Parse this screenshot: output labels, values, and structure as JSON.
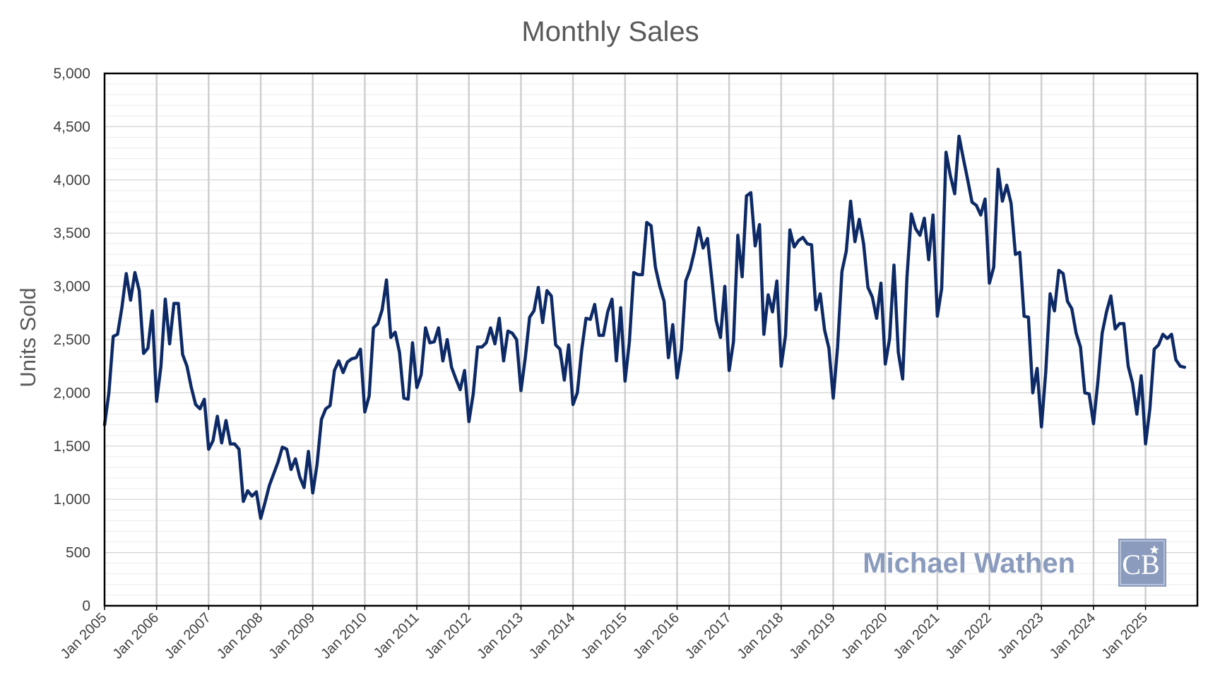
{
  "chart_data": {
    "type": "line",
    "title": "Monthly Sales",
    "ylabel": "Units Sold",
    "xlabel": "",
    "ylim": [
      0,
      5000
    ],
    "yticks": [
      0,
      500,
      1000,
      1500,
      2000,
      2500,
      3000,
      3500,
      4000,
      4500,
      5000
    ],
    "ytick_labels": [
      "0",
      "500",
      "1,000",
      "1,500",
      "2,000",
      "2,500",
      "3,000",
      "3,500",
      "4,000",
      "4,500",
      "5,000"
    ],
    "xtick_labels": [
      "Jan 2005",
      "Jan 2006",
      "Jan 2007",
      "Jan 2008",
      "Jan 2009",
      "Jan 2010",
      "Jan 2011",
      "Jan 2012",
      "Jan 2013",
      "Jan 2014",
      "Jan 2015",
      "Jan 2016",
      "Jan 2017",
      "Jan 2018",
      "Jan 2019",
      "Jan 2020",
      "Jan 2021",
      "Jan 2022",
      "Jan 2023",
      "Jan 2024",
      "Jan 2025"
    ],
    "x_start": "Jan 2005",
    "x_end": "Oct 2025",
    "x_frequency": "monthly",
    "grid": true,
    "legend": "none",
    "line_color": "#0d2a66",
    "series": [
      {
        "values": [
          1700,
          2000,
          2530,
          2550,
          2800,
          3120,
          2870,
          3130,
          2960,
          2370,
          2420,
          2770,
          1920,
          2250,
          2880,
          2460,
          2840,
          2840,
          2360,
          2250,
          2050,
          1890,
          1850,
          1940,
          1470,
          1550,
          1780,
          1530,
          1740,
          1520,
          1520,
          1470,
          980,
          1080,
          1030,
          1070,
          820,
          970,
          1130,
          1240,
          1350,
          1490,
          1470,
          1280,
          1380,
          1210,
          1110,
          1450,
          1060,
          1330,
          1750,
          1850,
          1880,
          2210,
          2300,
          2190,
          2290,
          2320,
          2330,
          2410,
          1820,
          1970,
          2610,
          2650,
          2780,
          3060,
          2520,
          2570,
          2380,
          1950,
          1940,
          2470,
          2050,
          2170,
          2610,
          2470,
          2480,
          2610,
          2300,
          2500,
          2240,
          2130,
          2030,
          2210,
          1730,
          1990,
          2430,
          2430,
          2470,
          2610,
          2460,
          2700,
          2300,
          2580,
          2560,
          2500,
          2020,
          2330,
          2710,
          2770,
          2990,
          2660,
          2960,
          2910,
          2450,
          2410,
          2120,
          2450,
          1890,
          2000,
          2400,
          2700,
          2690,
          2830,
          2540,
          2540,
          2760,
          2880,
          2300,
          2800,
          2110,
          2480,
          3130,
          3110,
          3110,
          3600,
          3570,
          3180,
          3000,
          2860,
          2330,
          2640,
          2140,
          2410,
          3050,
          3160,
          3330,
          3550,
          3360,
          3450,
          3070,
          2680,
          2520,
          3000,
          2210,
          2480,
          3480,
          3090,
          3850,
          3880,
          3380,
          3580,
          2550,
          2920,
          2760,
          3050,
          2250,
          2540,
          3530,
          3370,
          3430,
          3460,
          3400,
          3390,
          2780,
          2930,
          2590,
          2420,
          1950,
          2430,
          3140,
          3330,
          3800,
          3420,
          3630,
          3400,
          2990,
          2900,
          2700,
          3030,
          2270,
          2510,
          3200,
          2380,
          2130,
          3090,
          3680,
          3540,
          3480,
          3640,
          3250,
          3670,
          2720,
          2980,
          4260,
          4040,
          3870,
          4410,
          4200,
          4000,
          3790,
          3760,
          3670,
          3820,
          3030,
          3180,
          4100,
          3800,
          3950,
          3780,
          3300,
          3320,
          2720,
          2710,
          2000,
          2230,
          1680,
          2200,
          2930,
          2770,
          3150,
          3120,
          2860,
          2790,
          2560,
          2430,
          2000,
          1990,
          1710,
          2100,
          2560,
          2760,
          2910,
          2600,
          2650,
          2650,
          2250,
          2090,
          1800,
          2160,
          1520,
          1850,
          2410,
          2450,
          2550,
          2510,
          2550,
          2310,
          2250,
          2240
        ]
      }
    ]
  },
  "watermark": {
    "text": "Michael Wathen",
    "logo_text": "CB",
    "logo_color": "#8a9bbd"
  }
}
